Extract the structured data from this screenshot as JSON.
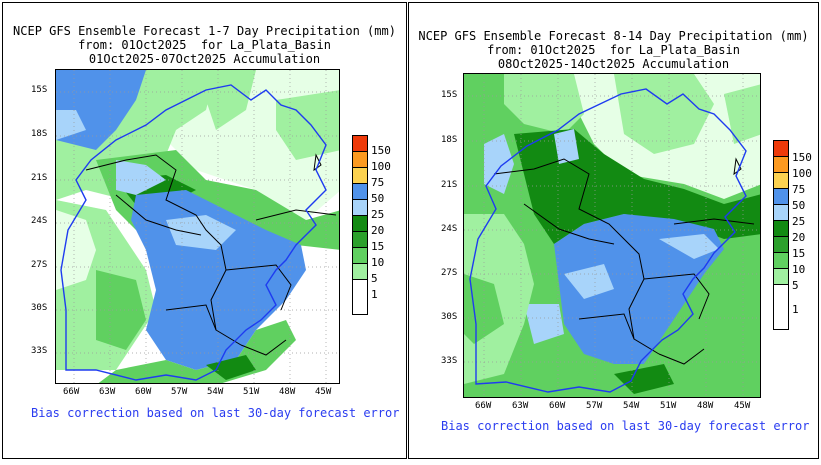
{
  "colors": {
    "c1": "#e6ffe6",
    "c5": "#a0f0a0",
    "c10": "#60d060",
    "c15": "#2ca02c",
    "c20": "#128a12",
    "c25": "#a8d4fa",
    "c50": "#5092ea",
    "c75": "#fcd250",
    "c100": "#fc9a20",
    "c150": "#ee3a0a",
    "white": "#ffffff",
    "basin": "#1e3cf0",
    "border": "#000000",
    "grid": "#999999"
  },
  "legend": {
    "labels": [
      "150",
      "100",
      "75",
      "50",
      "25",
      "20",
      "15",
      "10",
      "5",
      "1"
    ],
    "colors": [
      "#ee3a0a",
      "#fc9a20",
      "#fcd250",
      "#5092ea",
      "#a8d4fa",
      "#128a12",
      "#2ca02c",
      "#60d060",
      "#a0f0a0",
      "#ffffff"
    ]
  },
  "panels": [
    {
      "title_line1": "NCEP GFS Ensemble Forecast 1-7 Day Precipitation (mm)",
      "title_line2": "from: 01Oct2025  for La_Plata_Basin",
      "title_line3": "01Oct2025-07Oct2025 Accumulation",
      "lat_ticks": [
        "15S",
        "18S",
        "21S",
        "24S",
        "27S",
        "30S",
        "33S"
      ],
      "lon_ticks": [
        "66W",
        "63W",
        "60W",
        "57W",
        "54W",
        "51W",
        "48W",
        "45W"
      ],
      "bias_note": "Bias correction based on last 30-day forecast error"
    },
    {
      "title_line1": "NCEP GFS Ensemble Forecast 8-14 Day Precipitation (mm)",
      "title_line2": "from: 01Oct2025  for La_Plata_Basin",
      "title_line3": "08Oct2025-14Oct2025 Accumulation",
      "lat_ticks": [
        "15S",
        "18S",
        "21S",
        "24S",
        "27S",
        "30S",
        "33S"
      ],
      "lon_ticks": [
        "66W",
        "63W",
        "60W",
        "57W",
        "54W",
        "51W",
        "48W",
        "45W"
      ],
      "bias_note": "Bias correction based on last 30-day forecast error"
    }
  ]
}
